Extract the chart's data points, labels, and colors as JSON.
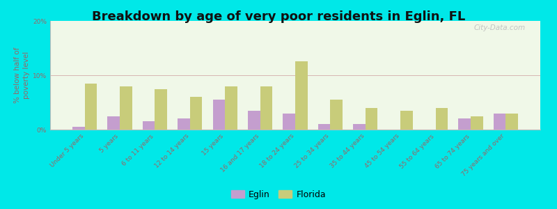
{
  "title": "Breakdown by age of very poor residents in Eglin, FL",
  "ylabel": "% below half of\npoverty level",
  "categories": [
    "Under 5 years",
    "5 years",
    "6 to 11 years",
    "12 to 14 years",
    "15 years",
    "16 and 17 years",
    "18 to 24 years",
    "25 to 34 years",
    "35 to 44 years",
    "45 to 54 years",
    "55 to 64 years",
    "65 to 74 years",
    "75 years and over"
  ],
  "eglin_values": [
    0.5,
    2.5,
    1.5,
    2.0,
    5.5,
    3.5,
    3.0,
    1.0,
    1.0,
    0.0,
    0.0,
    2.0,
    3.0
  ],
  "florida_values": [
    8.5,
    8.0,
    7.5,
    6.0,
    8.0,
    8.0,
    12.5,
    5.5,
    4.0,
    3.5,
    4.0,
    2.5,
    3.0
  ],
  "eglin_color": "#c49ece",
  "florida_color": "#c8cc7a",
  "background_outer": "#00e8e8",
  "background_plot": "#f0f8e8",
  "ylim": [
    0,
    20
  ],
  "yticks": [
    0,
    10,
    20
  ],
  "ytick_labels": [
    "0%",
    "10%",
    "20%"
  ],
  "title_fontsize": 13,
  "axis_label_fontsize": 7.5,
  "tick_label_fontsize": 6.5,
  "legend_fontsize": 9,
  "watermark": "City-Data.com"
}
